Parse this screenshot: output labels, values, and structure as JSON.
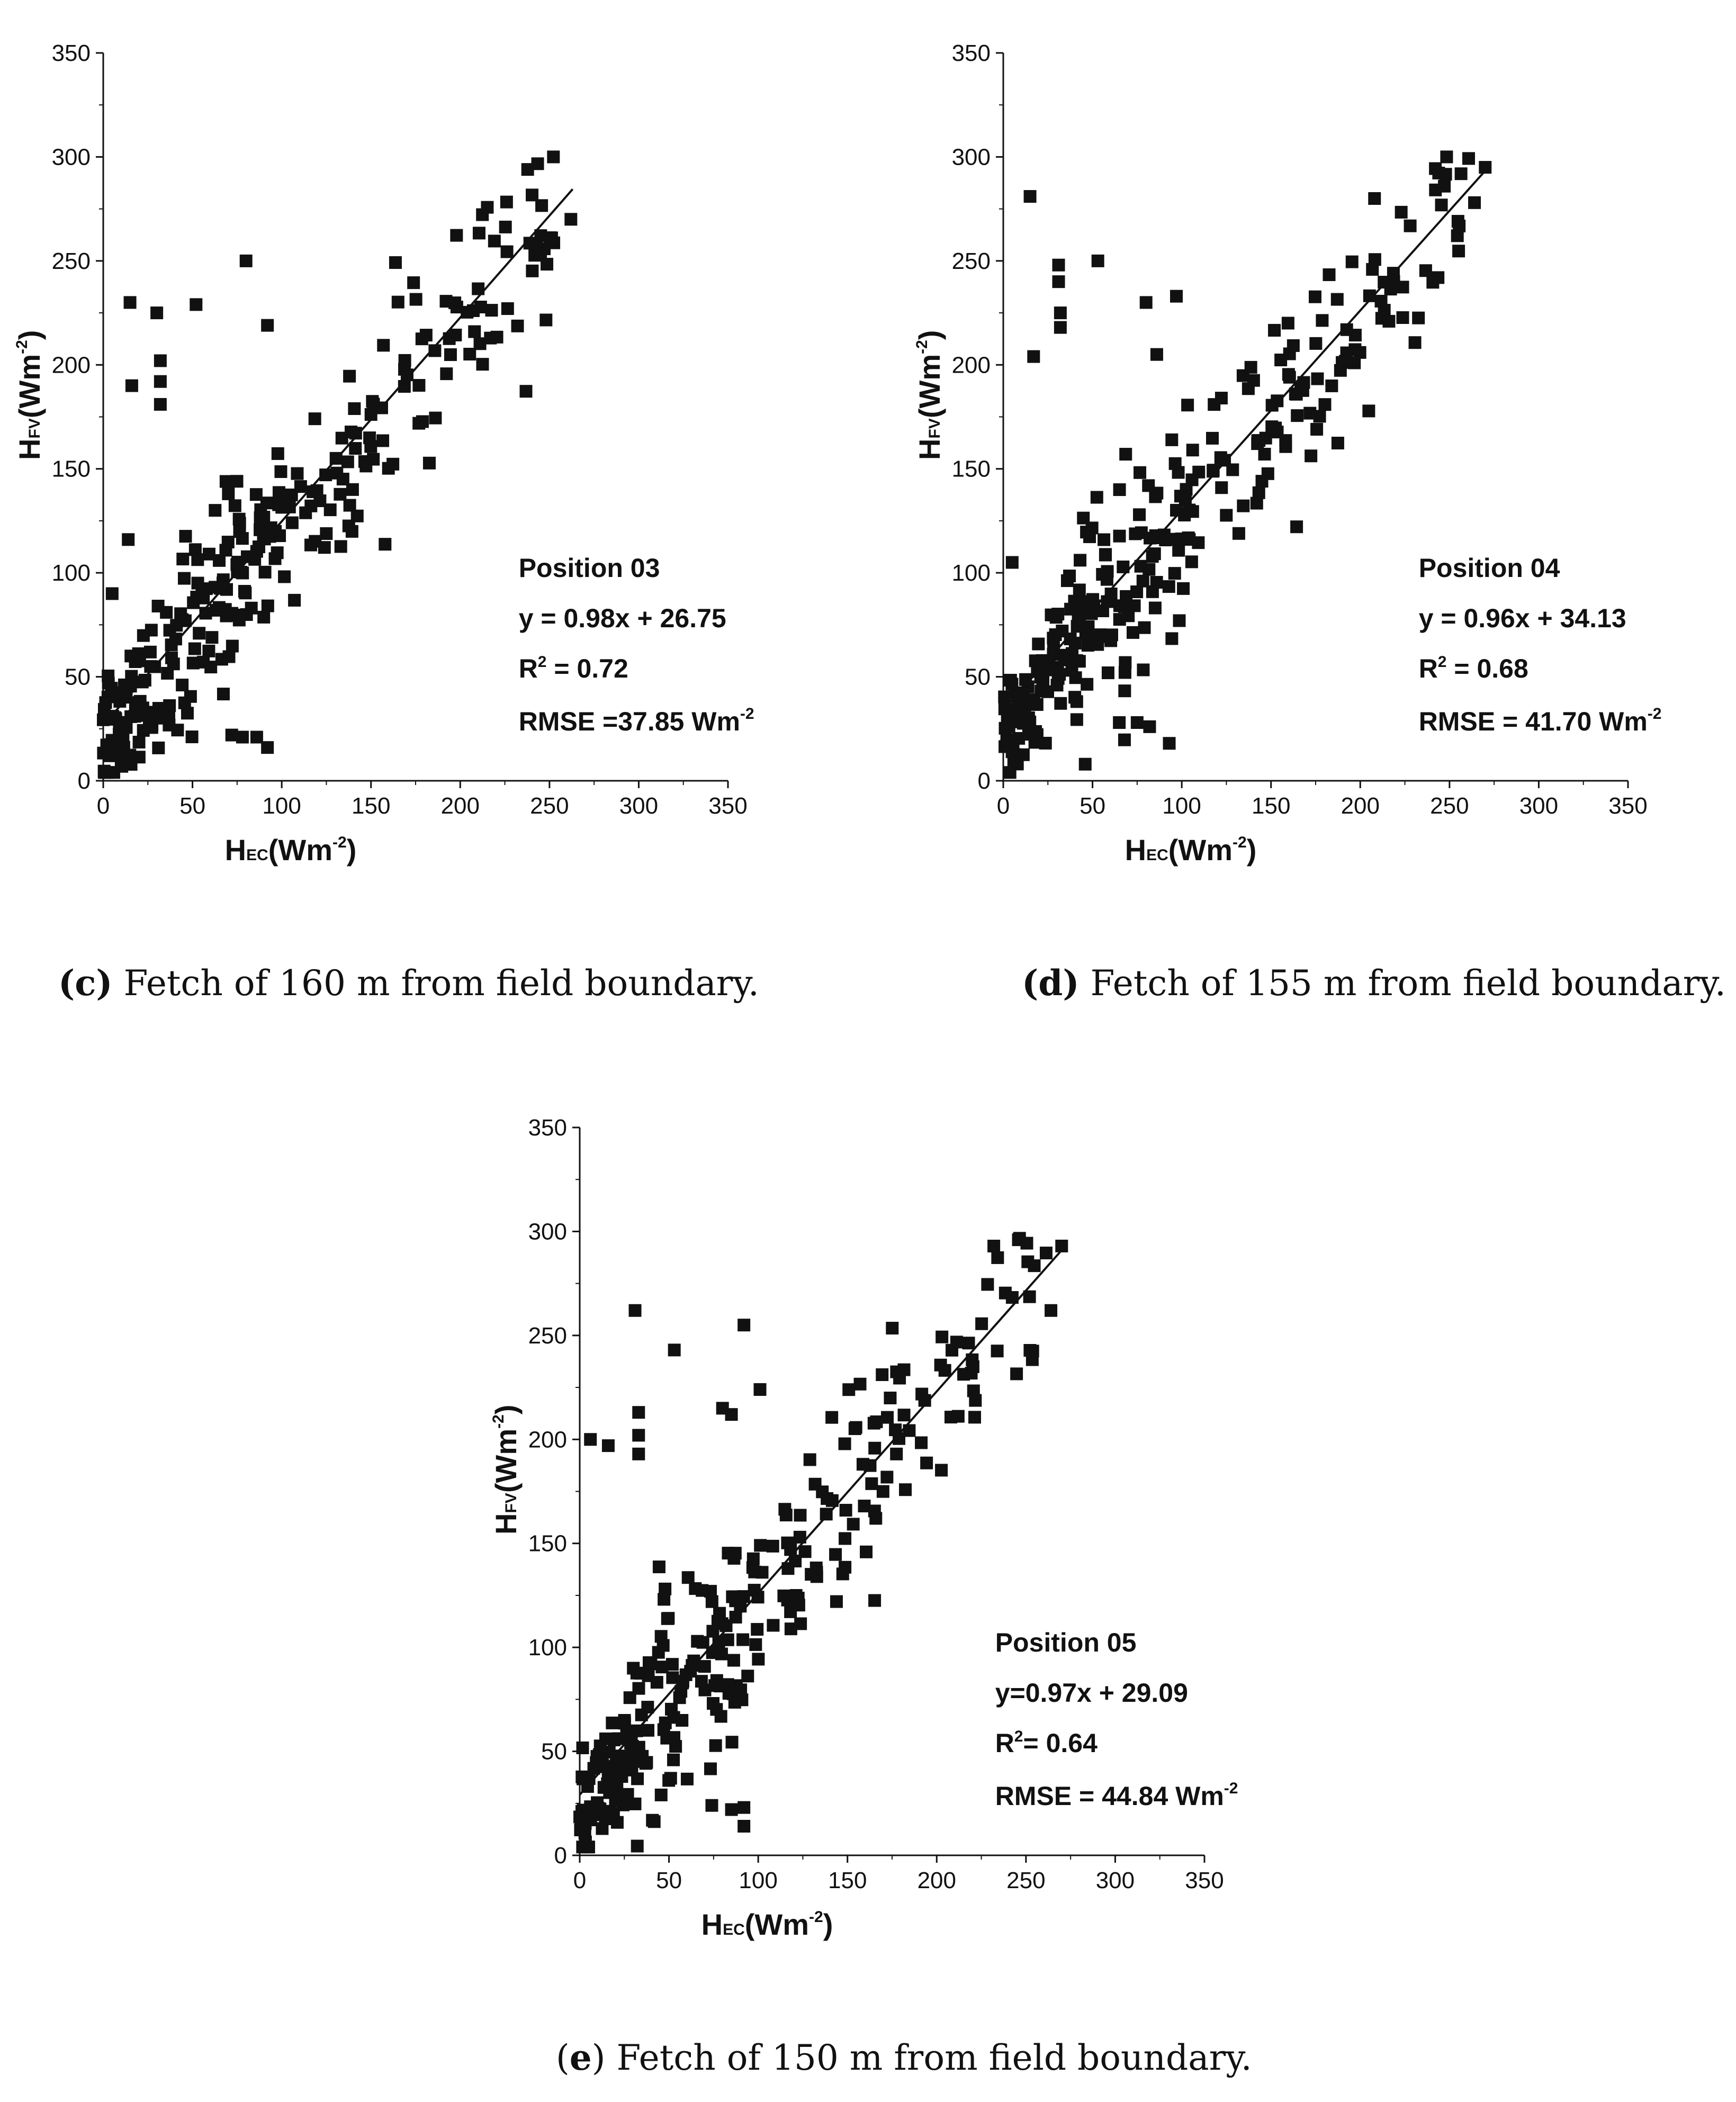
{
  "chart_data": [
    {
      "type": "scatter",
      "panel_label": "(c)",
      "caption": "Fetch of 160 m from field boundary.",
      "xlabel_main": "H",
      "xlabel_sub": "EC",
      "xlabel_unit": "(Wm",
      "xlabel_exp": "-2",
      "xlabel_close": ")",
      "ylabel_main": "H",
      "ylabel_sub": "FV",
      "ylabel_unit": "(Wm",
      "ylabel_exp": "-2",
      "ylabel_close": ")",
      "xlim": [
        0,
        350
      ],
      "ylim": [
        0,
        350
      ],
      "xticks": [
        "0",
        "50",
        "100",
        "150",
        "200",
        "250",
        "300",
        "350"
      ],
      "yticks": [
        "0",
        "50",
        "100",
        "150",
        "200",
        "250",
        "300",
        "350"
      ],
      "annotation": {
        "position": "Position 03",
        "equation": "y = 0.98x + 26.75",
        "r2_label": "R",
        "r2_exp": "2",
        "r2_value": " = 0.72",
        "rmse_text": "RMSE =37.85 Wm",
        "rmse_exp": "-2"
      },
      "fit": {
        "slope": 0.98,
        "intercept": 26.75,
        "x_range": [
          0,
          263
        ]
      },
      "seed": 31,
      "n_points": 300,
      "outliers": [
        [
          15,
          230
        ],
        [
          30,
          225
        ],
        [
          52,
          229
        ],
        [
          80,
          250
        ],
        [
          92,
          219
        ],
        [
          32,
          202
        ],
        [
          32,
          192
        ],
        [
          32,
          181
        ],
        [
          16,
          190
        ],
        [
          14,
          116
        ],
        [
          72,
          22
        ],
        [
          78,
          21
        ],
        [
          86,
          21
        ],
        [
          92,
          16
        ],
        [
          5,
          90
        ],
        [
          262,
          270
        ]
      ]
    },
    {
      "type": "scatter",
      "panel_label": "(d)",
      "caption": "Fetch of 155 m from field boundary.",
      "xlabel_main": "H",
      "xlabel_sub": "EC",
      "xlabel_unit": "(Wm",
      "xlabel_exp": "-2",
      "xlabel_close": ")",
      "ylabel_main": "H",
      "ylabel_sub": "FV",
      "ylabel_unit": "(Wm",
      "ylabel_exp": "-2",
      "ylabel_close": ")",
      "xlim": [
        0,
        350
      ],
      "ylim": [
        0,
        350
      ],
      "xticks": [
        "0",
        "50",
        "100",
        "150",
        "200",
        "250",
        "300",
        "350"
      ],
      "yticks": [
        "0",
        "50",
        "100",
        "150",
        "200",
        "250",
        "300",
        "350"
      ],
      "annotation": {
        "position": "Position 04",
        "equation": "y = 0.96x + 34.13",
        "r2_label": "R",
        "r2_exp": "2",
        "r2_value": " = 0.68",
        "rmse_text": "RMSE = 41.70 Wm",
        "rmse_exp": "-2"
      },
      "fit": {
        "slope": 0.96,
        "intercept": 34.13,
        "x_range": [
          0,
          272
        ]
      },
      "seed": 47,
      "n_points": 300,
      "outliers": [
        [
          15,
          281
        ],
        [
          31,
          248
        ],
        [
          31,
          240
        ],
        [
          32,
          225
        ],
        [
          32,
          218
        ],
        [
          53,
          250
        ],
        [
          17,
          204
        ],
        [
          86,
          205
        ],
        [
          97,
          233
        ],
        [
          80,
          230
        ],
        [
          65,
          28
        ],
        [
          75,
          28
        ],
        [
          82,
          26
        ],
        [
          93,
          18
        ],
        [
          5,
          105
        ],
        [
          270,
          295
        ],
        [
          264,
          278
        ],
        [
          208,
          280
        ]
      ]
    },
    {
      "type": "scatter",
      "panel_label": "(e)",
      "caption": "Fetch of 150 m from field boundary.",
      "xlabel_main": "H",
      "xlabel_sub": "EC",
      "xlabel_unit": "(Wm",
      "xlabel_exp": "-2",
      "xlabel_close": ")",
      "ylabel_main": "H",
      "ylabel_sub": "FV",
      "ylabel_unit": "(Wm",
      "ylabel_exp": "-2",
      "ylabel_close": ")",
      "xlim": [
        0,
        350
      ],
      "ylim": [
        0,
        350
      ],
      "xticks": [
        "0",
        "50",
        "100",
        "150",
        "200",
        "250",
        "300",
        "350"
      ],
      "yticks": [
        "0",
        "50",
        "100",
        "150",
        "200",
        "250",
        "300",
        "350"
      ],
      "annotation": {
        "position": "Position 05",
        "equation": "y=0.97x + 29.09",
        "r2_label": "R",
        "r2_exp": "2",
        "r2_value": "= 0.64",
        "rmse_text": "RMSE = 44.84 Wm",
        "rmse_exp": "-2"
      },
      "fit": {
        "slope": 0.97,
        "intercept": 29.09,
        "x_range": [
          0,
          272
        ]
      },
      "seed": 59,
      "n_points": 300,
      "outliers": [
        [
          31,
          262
        ],
        [
          53,
          243
        ],
        [
          92,
          255
        ],
        [
          33,
          213
        ],
        [
          33,
          202
        ],
        [
          33,
          193
        ],
        [
          6,
          200
        ],
        [
          16,
          197
        ],
        [
          101,
          224
        ],
        [
          80,
          215
        ],
        [
          85,
          212
        ],
        [
          74,
          24
        ],
        [
          85,
          22
        ],
        [
          92,
          23
        ],
        [
          92,
          14
        ],
        [
          270,
          293
        ],
        [
          264,
          262
        ]
      ]
    }
  ]
}
